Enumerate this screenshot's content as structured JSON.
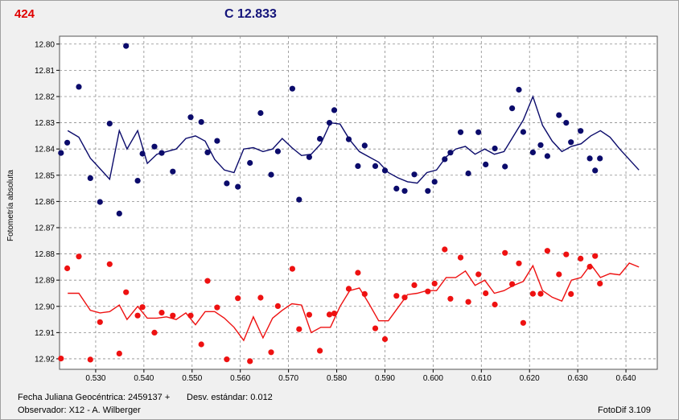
{
  "header": {
    "id": "424",
    "comparison": "C 12.833"
  },
  "footer": {
    "jd_label": "Fecha Juliana Geocéntrica: 2459137 +",
    "stdev_label": "Desv. estándar: 0.012",
    "observer_label": "Observador: X12 - A. Wilberger",
    "software_label": "FotoDif 3.109"
  },
  "colors": {
    "series_blue": "#0b0b6b",
    "series_red": "#ee1111",
    "id_red": "#e00000",
    "grid": "#8c8c8c"
  },
  "chart_data": {
    "type": "scatter",
    "ylabel": "Fotometría absoluta",
    "xlabel": "",
    "xlim": [
      0.5225,
      0.6465
    ],
    "ylim": [
      12.797,
      12.924
    ],
    "y_inverted": true,
    "grid": true,
    "x_ticks": [
      "0.530",
      "0.540",
      "0.550",
      "0.560",
      "0.570",
      "0.580",
      "0.590",
      "0.600",
      "0.610",
      "0.620",
      "0.630",
      "0.640"
    ],
    "y_ticks": [
      "12.80",
      "12.81",
      "12.82",
      "12.83",
      "12.84",
      "12.85",
      "12.86",
      "12.87",
      "12.88",
      "12.89",
      "12.90",
      "12.91",
      "12.92"
    ],
    "series": [
      {
        "color": "#0b0b6b",
        "points": [
          [
            0.5228,
            12.8415
          ],
          [
            0.5241,
            12.8376
          ],
          [
            0.5265,
            12.8163
          ],
          [
            0.5289,
            12.8511
          ],
          [
            0.5309,
            12.8602
          ],
          [
            0.5329,
            12.8303
          ],
          [
            0.5349,
            12.8646
          ],
          [
            0.5363,
            12.8007
          ],
          [
            0.5387,
            12.8521
          ],
          [
            0.5397,
            12.8418
          ],
          [
            0.5422,
            12.8391
          ],
          [
            0.5437,
            12.8415
          ],
          [
            0.546,
            12.8486
          ],
          [
            0.5497,
            12.8279
          ],
          [
            0.5519,
            12.8297
          ],
          [
            0.5532,
            12.8413
          ],
          [
            0.5552,
            12.8369
          ],
          [
            0.5572,
            12.8531
          ],
          [
            0.5595,
            12.8544
          ],
          [
            0.562,
            12.8453
          ],
          [
            0.5642,
            12.8263
          ],
          [
            0.5664,
            12.8498
          ],
          [
            0.5678,
            12.8409
          ],
          [
            0.5708,
            12.817
          ],
          [
            0.5722,
            12.8593
          ],
          [
            0.5743,
            12.8431
          ],
          [
            0.5765,
            12.8361
          ],
          [
            0.5785,
            12.83
          ],
          [
            0.5795,
            12.8252
          ],
          [
            0.5825,
            12.8363
          ],
          [
            0.5844,
            12.8465
          ],
          [
            0.5858,
            12.8387
          ],
          [
            0.588,
            12.8465
          ],
          [
            0.59,
            12.8482
          ],
          [
            0.5924,
            12.8551
          ],
          [
            0.5941,
            12.856
          ],
          [
            0.5961,
            12.8497
          ],
          [
            0.5989,
            12.856
          ],
          [
            0.6003,
            12.8525
          ],
          [
            0.6024,
            12.8439
          ],
          [
            0.6036,
            12.8414
          ],
          [
            0.6057,
            12.8336
          ],
          [
            0.6073,
            12.8493
          ],
          [
            0.6094,
            12.8336
          ],
          [
            0.6109,
            12.8459
          ],
          [
            0.6128,
            12.8398
          ],
          [
            0.6149,
            12.8467
          ],
          [
            0.6164,
            12.8245
          ],
          [
            0.6178,
            12.8174
          ],
          [
            0.6187,
            12.8335
          ],
          [
            0.6207,
            12.8413
          ],
          [
            0.6223,
            12.8385
          ],
          [
            0.6237,
            12.8427
          ],
          [
            0.6261,
            12.8271
          ],
          [
            0.6276,
            12.83
          ],
          [
            0.6286,
            12.8374
          ],
          [
            0.6306,
            12.8331
          ],
          [
            0.6325,
            12.8436
          ],
          [
            0.6336,
            12.8482
          ],
          [
            0.6346,
            12.8436
          ]
        ]
      },
      {
        "color": "#ee1111",
        "points": [
          [
            0.5228,
            12.9199
          ],
          [
            0.5241,
            12.8855
          ],
          [
            0.5265,
            12.881
          ],
          [
            0.5289,
            12.9203
          ],
          [
            0.5309,
            12.906
          ],
          [
            0.5329,
            12.8839
          ],
          [
            0.5349,
            12.918
          ],
          [
            0.5363,
            12.8946
          ],
          [
            0.5387,
            12.9035
          ],
          [
            0.5397,
            12.9003
          ],
          [
            0.5422,
            12.91
          ],
          [
            0.5437,
            12.9024
          ],
          [
            0.546,
            12.9035
          ],
          [
            0.5497,
            12.9035
          ],
          [
            0.5519,
            12.9145
          ],
          [
            0.5532,
            12.8903
          ],
          [
            0.5552,
            12.9004
          ],
          [
            0.5572,
            12.9202
          ],
          [
            0.5595,
            12.8969
          ],
          [
            0.562,
            12.9209
          ],
          [
            0.5642,
            12.8967
          ],
          [
            0.5664,
            12.9175
          ],
          [
            0.5678,
            12.8999
          ],
          [
            0.5708,
            12.8857
          ],
          [
            0.5722,
            12.9087
          ],
          [
            0.5743,
            12.9032
          ],
          [
            0.5765,
            12.9169
          ],
          [
            0.5785,
            12.9031
          ],
          [
            0.5795,
            12.9027
          ],
          [
            0.5825,
            12.8933
          ],
          [
            0.5844,
            12.8872
          ],
          [
            0.5858,
            12.8953
          ],
          [
            0.588,
            12.9084
          ],
          [
            0.59,
            12.9125
          ],
          [
            0.5924,
            12.896
          ],
          [
            0.5941,
            12.8966
          ],
          [
            0.5961,
            12.8919
          ],
          [
            0.5989,
            12.8943
          ],
          [
            0.6003,
            12.8913
          ],
          [
            0.6024,
            12.8783
          ],
          [
            0.6036,
            12.8971
          ],
          [
            0.6057,
            12.8814
          ],
          [
            0.6073,
            12.8983
          ],
          [
            0.6094,
            12.8878
          ],
          [
            0.6109,
            12.895
          ],
          [
            0.6128,
            12.8993
          ],
          [
            0.6149,
            12.8796
          ],
          [
            0.6164,
            12.8915
          ],
          [
            0.6178,
            12.8836
          ],
          [
            0.6187,
            12.9063
          ],
          [
            0.6207,
            12.8952
          ],
          [
            0.6223,
            12.8952
          ],
          [
            0.6237,
            12.8788
          ],
          [
            0.6261,
            12.8878
          ],
          [
            0.6276,
            12.8802
          ],
          [
            0.6286,
            12.8953
          ],
          [
            0.6306,
            12.8818
          ],
          [
            0.6325,
            12.8849
          ],
          [
            0.6336,
            12.8808
          ],
          [
            0.6346,
            12.8913
          ]
        ]
      }
    ],
    "lines": [
      {
        "color": "#0b0b6b",
        "points": [
          [
            0.5242,
            12.833
          ],
          [
            0.5265,
            12.8355
          ],
          [
            0.5289,
            12.8435
          ],
          [
            0.5309,
            12.8475
          ],
          [
            0.5329,
            12.8515
          ],
          [
            0.5349,
            12.833
          ],
          [
            0.5365,
            12.84
          ],
          [
            0.5387,
            12.833
          ],
          [
            0.5407,
            12.8455
          ],
          [
            0.5427,
            12.842
          ],
          [
            0.5447,
            12.841
          ],
          [
            0.5467,
            12.84
          ],
          [
            0.5487,
            12.836
          ],
          [
            0.5507,
            12.835
          ],
          [
            0.5527,
            12.837
          ],
          [
            0.5547,
            12.844
          ],
          [
            0.5567,
            12.848
          ],
          [
            0.5587,
            12.849
          ],
          [
            0.5607,
            12.84
          ],
          [
            0.5627,
            12.8395
          ],
          [
            0.5647,
            12.841
          ],
          [
            0.5667,
            12.84
          ],
          [
            0.5687,
            12.836
          ],
          [
            0.5707,
            12.8395
          ],
          [
            0.5727,
            12.8425
          ],
          [
            0.5747,
            12.842
          ],
          [
            0.5767,
            12.838
          ],
          [
            0.5787,
            12.83
          ],
          [
            0.5807,
            12.8305
          ],
          [
            0.5827,
            12.8365
          ],
          [
            0.5847,
            12.841
          ],
          [
            0.5867,
            12.843
          ],
          [
            0.5887,
            12.845
          ],
          [
            0.5907,
            12.849
          ],
          [
            0.5927,
            12.851
          ],
          [
            0.5947,
            12.8525
          ],
          [
            0.5967,
            12.853
          ],
          [
            0.5987,
            12.849
          ],
          [
            0.6007,
            12.848
          ],
          [
            0.6027,
            12.843
          ],
          [
            0.6047,
            12.84
          ],
          [
            0.6067,
            12.839
          ],
          [
            0.6087,
            12.842
          ],
          [
            0.6107,
            12.84
          ],
          [
            0.6127,
            12.842
          ],
          [
            0.6147,
            12.841
          ],
          [
            0.6167,
            12.835
          ],
          [
            0.6187,
            12.829
          ],
          [
            0.6207,
            12.82
          ],
          [
            0.6227,
            12.831
          ],
          [
            0.6247,
            12.837
          ],
          [
            0.6267,
            12.841
          ],
          [
            0.6287,
            12.839
          ],
          [
            0.6307,
            12.838
          ],
          [
            0.6327,
            12.835
          ],
          [
            0.6347,
            12.833
          ],
          [
            0.6367,
            12.8355
          ],
          [
            0.6387,
            12.84
          ],
          [
            0.6407,
            12.844
          ],
          [
            0.6427,
            12.848
          ]
        ]
      },
      {
        "color": "#ee1111",
        "points": [
          [
            0.5242,
            12.895
          ],
          [
            0.5265,
            12.895
          ],
          [
            0.5289,
            12.9015
          ],
          [
            0.5309,
            12.9025
          ],
          [
            0.5329,
            12.902
          ],
          [
            0.5349,
            12.8995
          ],
          [
            0.5365,
            12.905
          ],
          [
            0.5387,
            12.9
          ],
          [
            0.5407,
            12.9045
          ],
          [
            0.5427,
            12.9045
          ],
          [
            0.5447,
            12.904
          ],
          [
            0.5467,
            12.905
          ],
          [
            0.5487,
            12.9025
          ],
          [
            0.5507,
            12.907
          ],
          [
            0.5527,
            12.902
          ],
          [
            0.5547,
            12.902
          ],
          [
            0.5567,
            12.9045
          ],
          [
            0.5587,
            12.908
          ],
          [
            0.5607,
            12.913
          ],
          [
            0.5627,
            12.904
          ],
          [
            0.5647,
            12.912
          ],
          [
            0.5667,
            12.9045
          ],
          [
            0.5687,
            12.9015
          ],
          [
            0.5707,
            12.899
          ],
          [
            0.5727,
            12.8995
          ],
          [
            0.5747,
            12.91
          ],
          [
            0.5767,
            12.908
          ],
          [
            0.5787,
            12.908
          ],
          [
            0.5807,
            12.9
          ],
          [
            0.5827,
            12.894
          ],
          [
            0.5847,
            12.893
          ],
          [
            0.5867,
            12.899
          ],
          [
            0.5887,
            12.9055
          ],
          [
            0.5907,
            12.9055
          ],
          [
            0.5927,
            12.9005
          ],
          [
            0.5947,
            12.8955
          ],
          [
            0.5967,
            12.895
          ],
          [
            0.5987,
            12.894
          ],
          [
            0.6007,
            12.894
          ],
          [
            0.6027,
            12.889
          ],
          [
            0.6047,
            12.889
          ],
          [
            0.6067,
            12.8865
          ],
          [
            0.6087,
            12.892
          ],
          [
            0.6107,
            12.89
          ],
          [
            0.6127,
            12.895
          ],
          [
            0.6147,
            12.894
          ],
          [
            0.6167,
            12.892
          ],
          [
            0.6187,
            12.8905
          ],
          [
            0.6207,
            12.8845
          ],
          [
            0.6227,
            12.894
          ],
          [
            0.6247,
            12.8965
          ],
          [
            0.6267,
            12.898
          ],
          [
            0.6287,
            12.89
          ],
          [
            0.6307,
            12.889
          ],
          [
            0.6327,
            12.884
          ],
          [
            0.6347,
            12.889
          ],
          [
            0.6367,
            12.8875
          ],
          [
            0.6387,
            12.888
          ],
          [
            0.6407,
            12.8835
          ],
          [
            0.6427,
            12.885
          ]
        ]
      }
    ]
  }
}
